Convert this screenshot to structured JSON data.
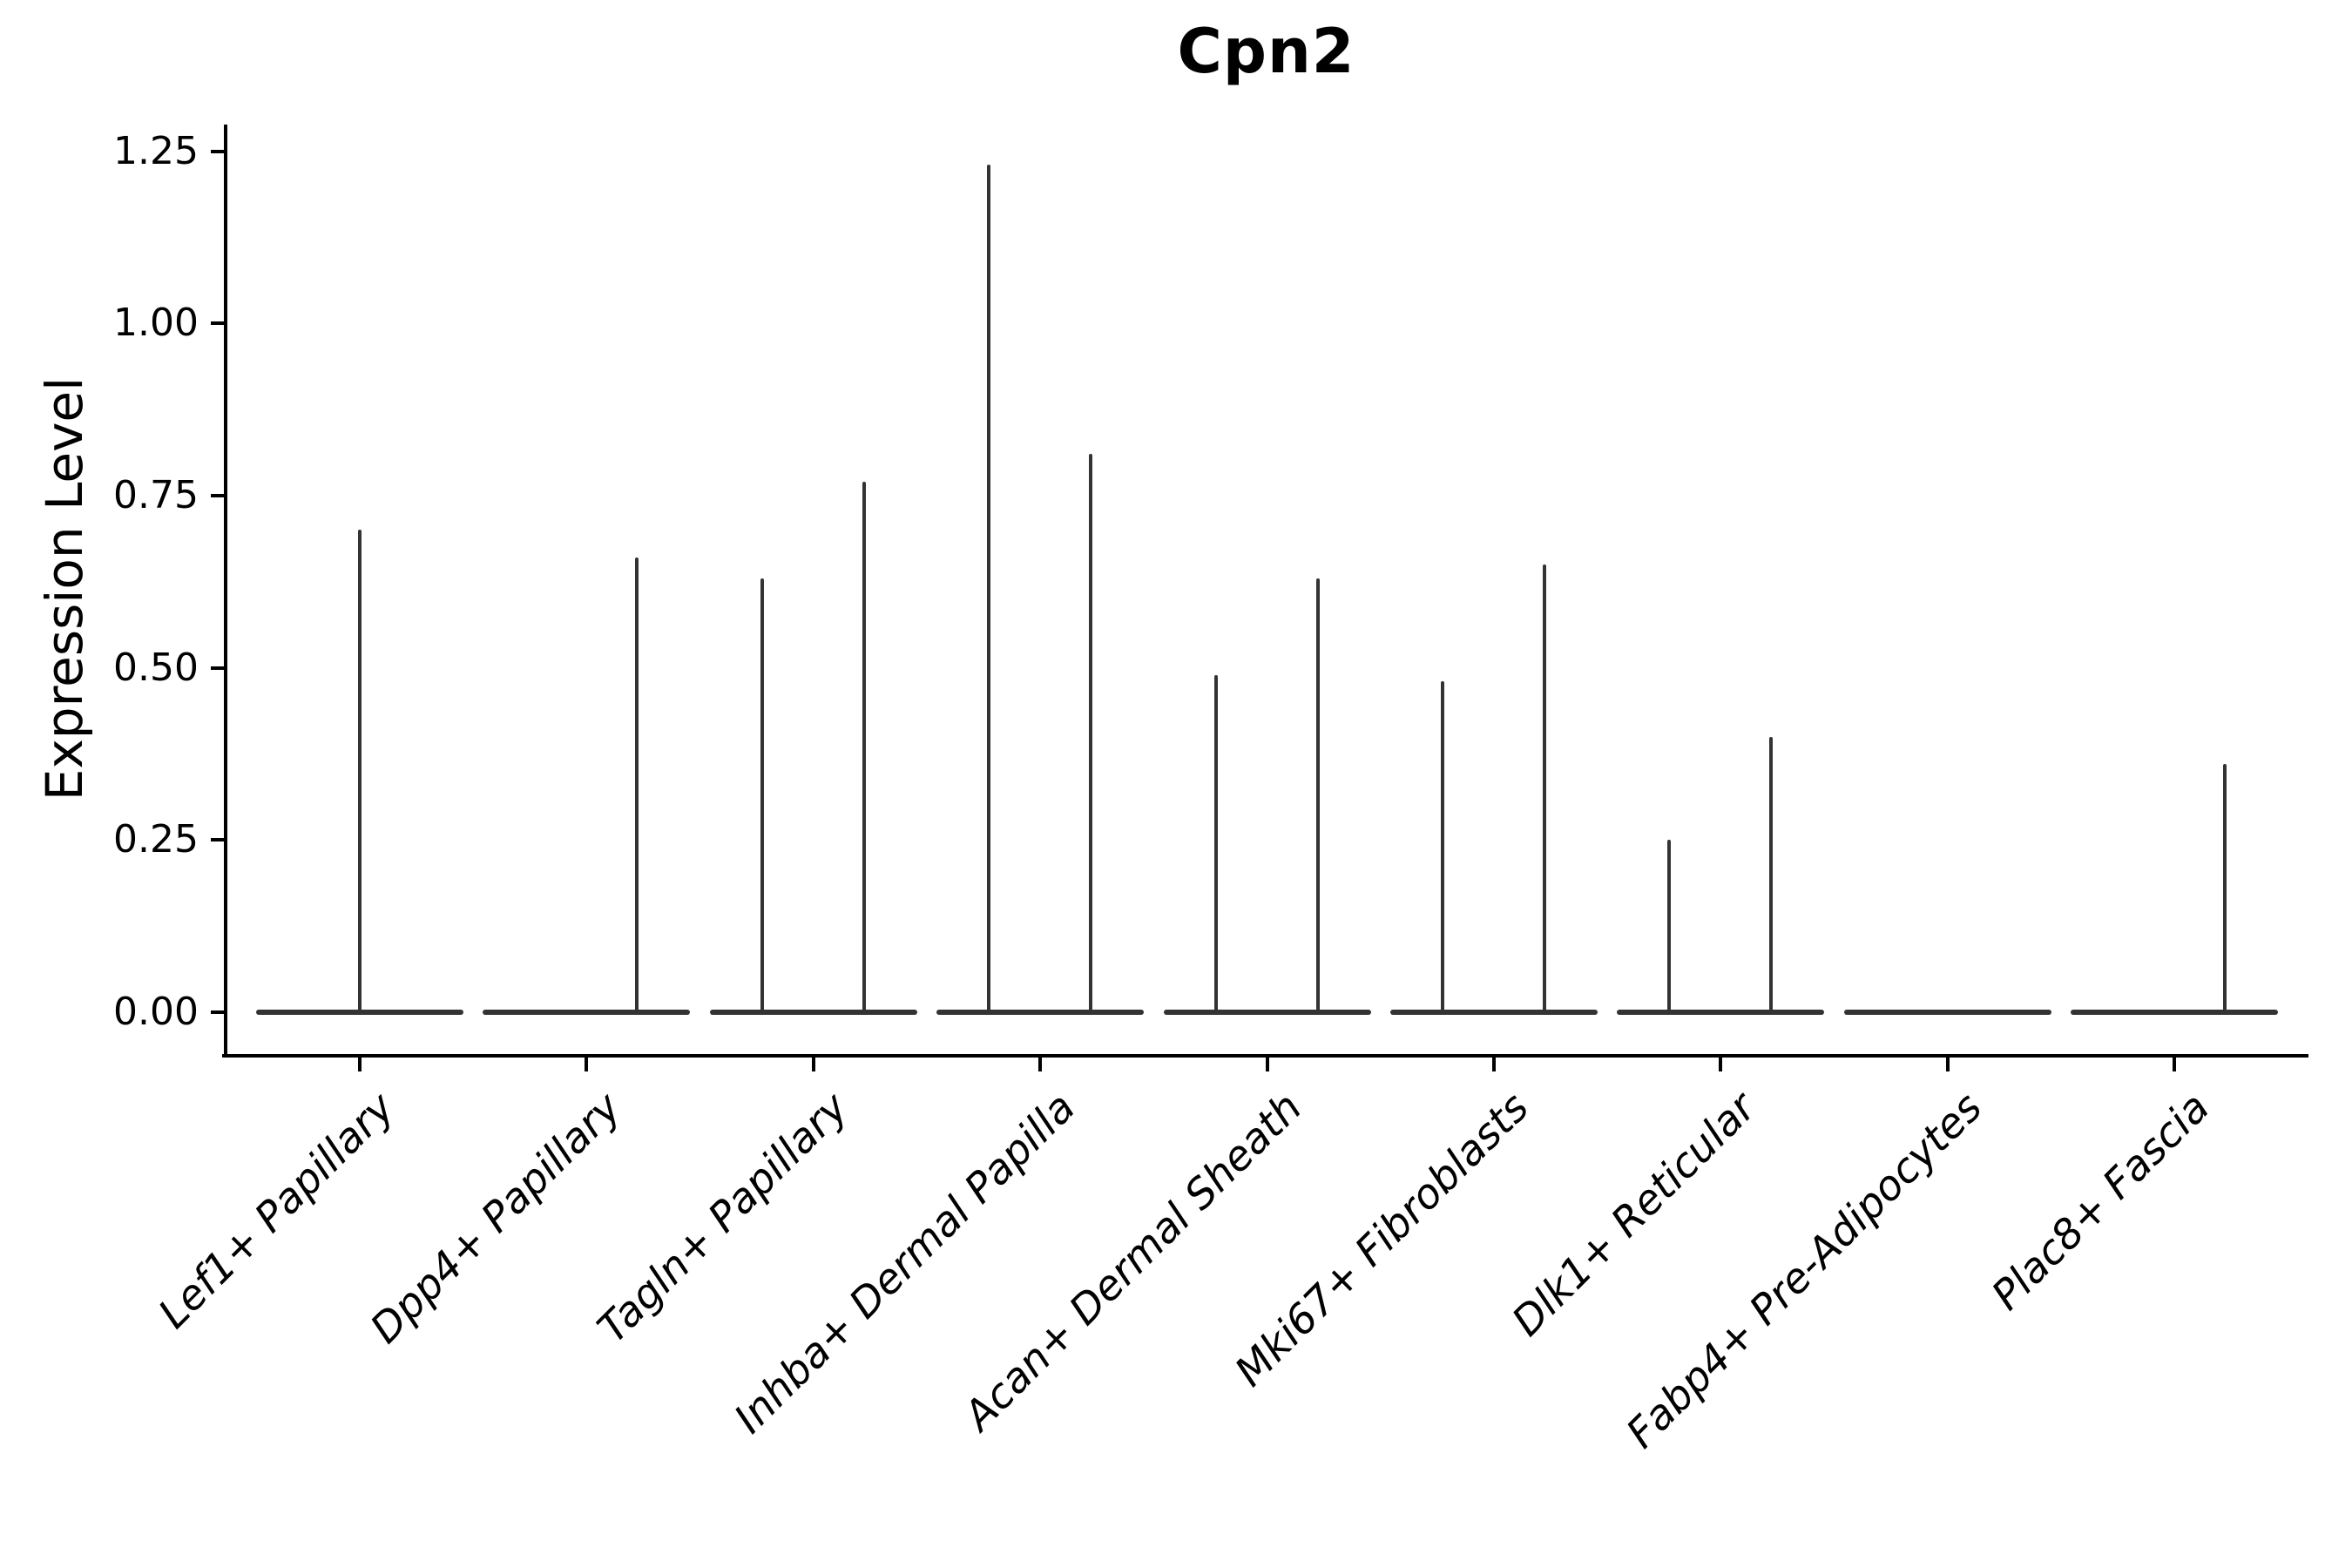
{
  "chart_data": {
    "type": "violin",
    "title": "Cpn2",
    "ylabel": "Expression Level",
    "xlabel": "",
    "grid": false,
    "legend": null,
    "ylim": [
      -0.06,
      1.29
    ],
    "yticks": {
      "values": [
        0,
        0.25,
        0.5,
        0.75,
        1.0,
        1.25
      ],
      "labels": [
        "0.00",
        "0.25",
        "0.50",
        "0.75",
        "1.00",
        "1.25"
      ]
    },
    "description": "Violin plot of Cpn2 expression; each group shows a flat violin body at 0 with thin density spikes rising to the maximum expression values.",
    "categories": [
      {
        "label": "Lef1+ Papillary",
        "spikes": [
          {
            "pos": "center",
            "value": 0.7
          }
        ]
      },
      {
        "label": "Dpp4+ Papillary",
        "spikes": [
          {
            "pos": "right",
            "value": 0.66
          }
        ]
      },
      {
        "label": "Tagln+ Papillary",
        "spikes": [
          {
            "pos": "left",
            "value": 0.63
          },
          {
            "pos": "right",
            "value": 0.77
          }
        ]
      },
      {
        "label": "Inhba+ Dermal Papilla",
        "spikes": [
          {
            "pos": "left",
            "value": 1.23
          },
          {
            "pos": "right",
            "value": 0.81
          }
        ]
      },
      {
        "label": "Acan+ Dermal Sheath",
        "spikes": [
          {
            "pos": "left",
            "value": 0.49
          },
          {
            "pos": "right",
            "value": 0.63
          }
        ]
      },
      {
        "label": "Mki67+ Fibroblasts",
        "spikes": [
          {
            "pos": "left",
            "value": 0.48
          },
          {
            "pos": "right",
            "value": 0.65
          }
        ]
      },
      {
        "label": "Dlk1+ Reticular",
        "spikes": [
          {
            "pos": "left",
            "value": 0.25
          },
          {
            "pos": "right",
            "value": 0.4
          }
        ]
      },
      {
        "label": "Fabp4+ Pre-Adipocytes",
        "spikes": []
      },
      {
        "label": "Plac8+ Fascia",
        "spikes": [
          {
            "pos": "right",
            "value": 0.36
          }
        ]
      }
    ],
    "colors": {
      "violin": "#333333",
      "axis": "#000000",
      "text": "#000000",
      "background": "#ffffff"
    }
  }
}
